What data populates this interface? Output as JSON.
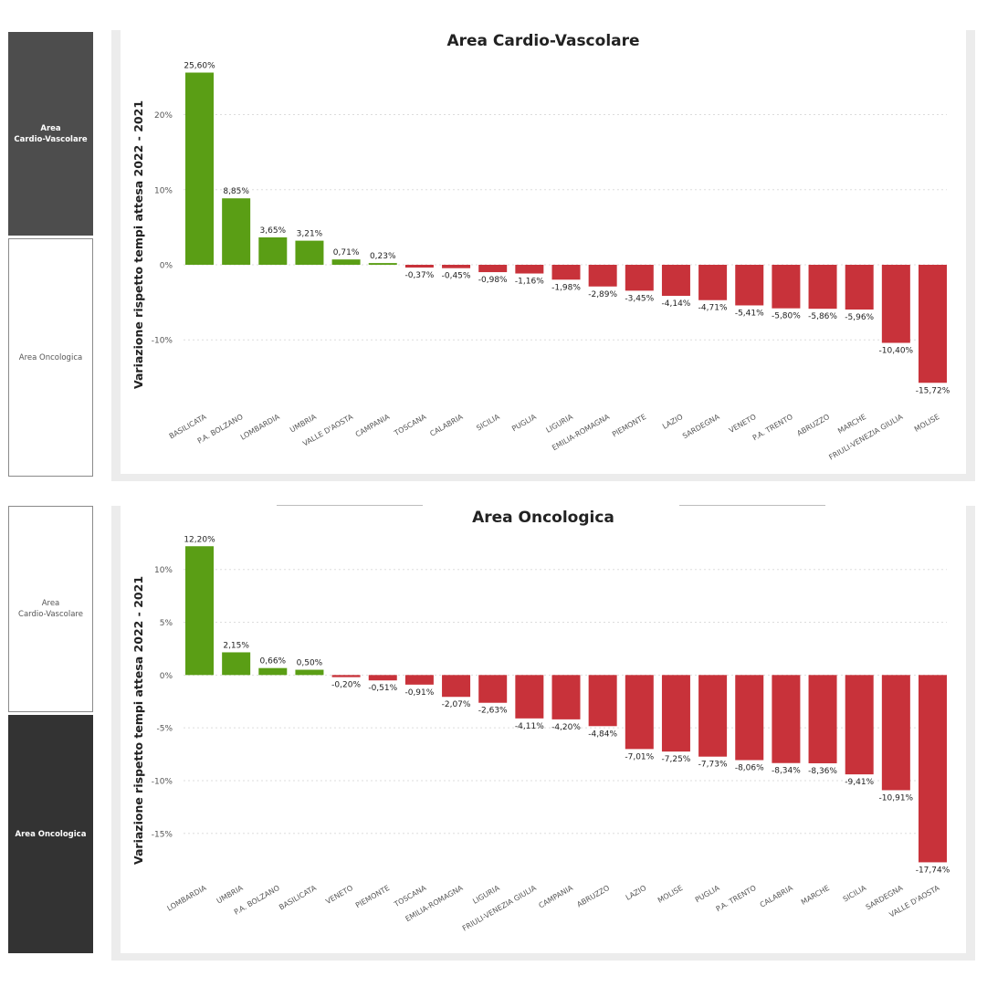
{
  "nav_top": {
    "cardio": {
      "label": "Area\nCardio-Vascolare",
      "active": true
    },
    "onco": {
      "label": "Area Oncologica",
      "active": false
    }
  },
  "nav_bottom": {
    "cardio": {
      "label": "Area\nCardio-Vascolare",
      "active": false
    },
    "onco": {
      "label": "Area Oncologica",
      "active": true
    }
  },
  "colors": {
    "positive": "#5a9e15",
    "negative": "#c8323a",
    "grid": "#dddddd"
  },
  "chart_data": [
    {
      "type": "bar",
      "title": "Area Cardio-Vascolare",
      "ylabel": "Variazione rispetto tempi attesa 2022 - 2021",
      "categories": [
        "BASILICATA",
        "P.A. BOLZANO",
        "LOMBARDIA",
        "UMBRIA",
        "VALLE D'AOSTA",
        "CAMPANIA",
        "TOSCANA",
        "CALABRIA",
        "SICILIA",
        "PUGLIA",
        "LIGURIA",
        "EMILIA-ROMAGNA",
        "PIEMONTE",
        "LAZIO",
        "SARDEGNA",
        "VENETO",
        "P.A. TRENTO",
        "ABRUZZO",
        "MARCHE",
        "FRIULI-VENEZIA GIULIA",
        "MOLISE"
      ],
      "values": [
        25.6,
        8.85,
        3.65,
        3.21,
        0.71,
        0.23,
        -0.37,
        -0.45,
        -0.98,
        -1.16,
        -1.98,
        -2.89,
        -3.45,
        -4.14,
        -4.71,
        -5.41,
        -5.8,
        -5.86,
        -5.96,
        -10.4,
        -15.72
      ],
      "value_labels": [
        "25,60%",
        "8,85%",
        "3,65%",
        "3,21%",
        "0,71%",
        "0,23%",
        "-0,37%",
        "-0,45%",
        "-0,98%",
        "-1,16%",
        "-1,98%",
        "-2,89%",
        "-3,45%",
        "-4,14%",
        "-4,71%",
        "-5,41%",
        "-5,80%",
        "-5,86%",
        "-5,96%",
        "-10,40%",
        "-15,72%"
      ],
      "yticks": [
        20,
        10,
        0,
        -10
      ],
      "ytick_labels": [
        "20%",
        "10%",
        "0%",
        "-10%"
      ],
      "ylim": [
        -18,
        27
      ],
      "grid": true
    },
    {
      "type": "bar",
      "title": "Area Oncologica",
      "ylabel": "Variazione rispetto tempi attesa 2022 - 2021",
      "categories": [
        "LOMBARDIA",
        "UMBRIA",
        "P.A. BOLZANO",
        "BASILICATA",
        "VENETO",
        "PIEMONTE",
        "TOSCANA",
        "EMILIA-ROMAGNA",
        "LIGURIA",
        "FRIULI-VENEZIA GIULIA",
        "CAMPANIA",
        "ABRUZZO",
        "LAZIO",
        "MOLISE",
        "PUGLIA",
        "P.A. TRENTO",
        "CALABRIA",
        "MARCHE",
        "SICILIA",
        "SARDEGNA",
        "VALLE D'AOSTA"
      ],
      "values": [
        12.2,
        2.15,
        0.66,
        0.5,
        -0.2,
        -0.51,
        -0.91,
        -2.07,
        -2.63,
        -4.11,
        -4.2,
        -4.84,
        -7.01,
        -7.25,
        -7.73,
        -8.06,
        -8.34,
        -8.36,
        -9.41,
        -10.91,
        -17.74
      ],
      "value_labels": [
        "12,20%",
        "2,15%",
        "0,66%",
        "0,50%",
        "-0,20%",
        "-0,51%",
        "-0,91%",
        "-2,07%",
        "-2,63%",
        "-4,11%",
        "-4,20%",
        "-4,84%",
        "-7,01%",
        "-7,25%",
        "-7,73%",
        "-8,06%",
        "-8,34%",
        "-8,36%",
        "-9,41%",
        "-10,91%",
        "-17,74%"
      ],
      "yticks": [
        10,
        5,
        0,
        -5,
        -10,
        -15
      ],
      "ytick_labels": [
        "10%",
        "5%",
        "0%",
        "-5%",
        "-10%",
        "-15%"
      ],
      "ylim": [
        -19,
        13
      ],
      "grid": true
    }
  ]
}
